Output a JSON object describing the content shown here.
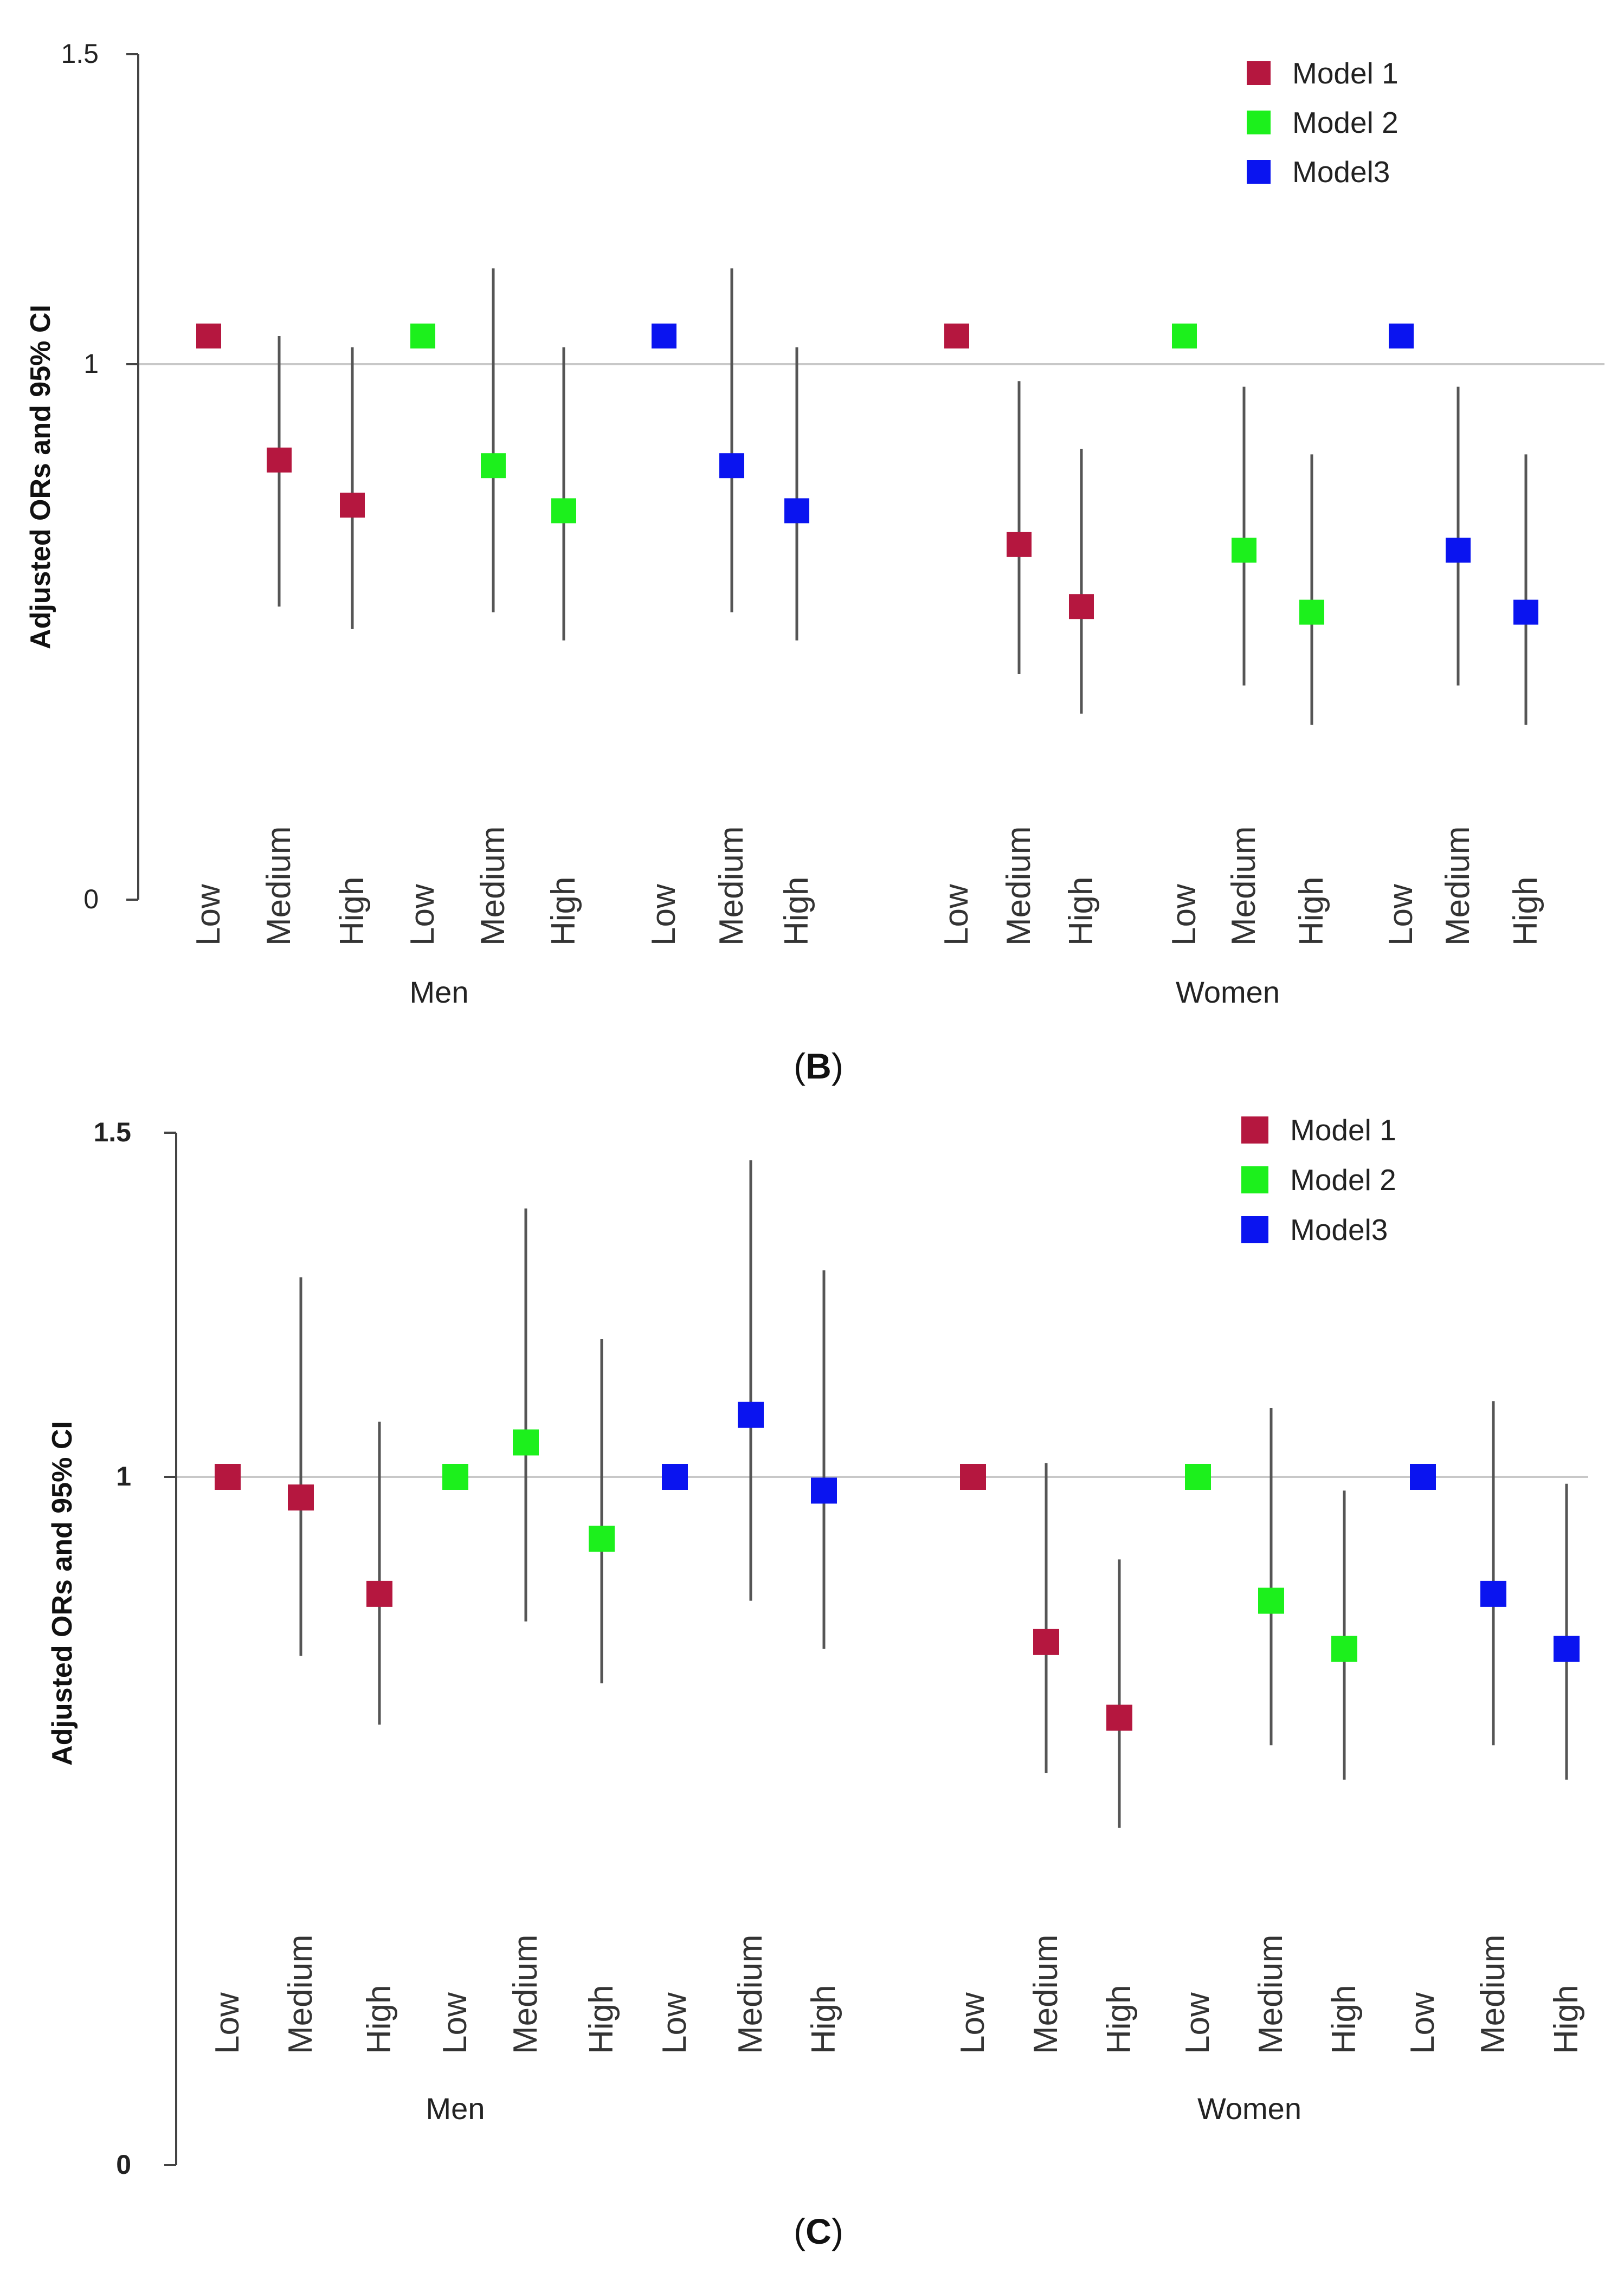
{
  "chart_data": [
    {
      "type": "scatter",
      "subtype": "forest-plot",
      "panel_label": "(B)",
      "ylabel": "Adjusted ORs and 95% CI",
      "ylim": [
        0,
        1.5
      ],
      "yticks": [
        {
          "value": 0,
          "label": "0"
        },
        {
          "value": 1,
          "label": "1"
        },
        {
          "value": 1.5,
          "label": "1.5"
        }
      ],
      "reference_line": 1,
      "legend": [
        {
          "name": "Model 1",
          "color": "#b5173f"
        },
        {
          "name": "Model 2",
          "color": "#1cf01c"
        },
        {
          "name": "Model3",
          "color": "#0a14f0"
        }
      ],
      "groups": [
        {
          "name": "Men",
          "models": [
            {
              "model": "Model 1",
              "points": [
                {
                  "category": "Low",
                  "or": 1.0,
                  "ci": null
                },
                {
                  "category": "Medium",
                  "or": 0.78,
                  "ci": [
                    0.52,
                    1.0
                  ]
                },
                {
                  "category": "High",
                  "or": 0.7,
                  "ci": [
                    0.48,
                    0.98
                  ]
                }
              ]
            },
            {
              "model": "Model 2",
              "points": [
                {
                  "category": "Low",
                  "or": 1.0,
                  "ci": null
                },
                {
                  "category": "Medium",
                  "or": 0.77,
                  "ci": [
                    0.51,
                    1.12
                  ]
                },
                {
                  "category": "High",
                  "or": 0.69,
                  "ci": [
                    0.46,
                    0.98
                  ]
                }
              ]
            },
            {
              "model": "Model3",
              "points": [
                {
                  "category": "Low",
                  "or": 1.0,
                  "ci": null
                },
                {
                  "category": "Medium",
                  "or": 0.77,
                  "ci": [
                    0.51,
                    1.12
                  ]
                },
                {
                  "category": "High",
                  "or": 0.69,
                  "ci": [
                    0.46,
                    0.98
                  ]
                }
              ]
            }
          ]
        },
        {
          "name": "Women",
          "models": [
            {
              "model": "Model 1",
              "points": [
                {
                  "category": "Low",
                  "or": 1.0,
                  "ci": null
                },
                {
                  "category": "Medium",
                  "or": 0.63,
                  "ci": [
                    0.4,
                    0.92
                  ]
                },
                {
                  "category": "High",
                  "or": 0.52,
                  "ci": [
                    0.33,
                    0.8
                  ]
                }
              ]
            },
            {
              "model": "Model 2",
              "points": [
                {
                  "category": "Low",
                  "or": 1.0,
                  "ci": null
                },
                {
                  "category": "Medium",
                  "or": 0.62,
                  "ci": [
                    0.38,
                    0.91
                  ]
                },
                {
                  "category": "High",
                  "or": 0.51,
                  "ci": [
                    0.31,
                    0.79
                  ]
                }
              ]
            },
            {
              "model": "Model3",
              "points": [
                {
                  "category": "Low",
                  "or": 1.0,
                  "ci": null
                },
                {
                  "category": "Medium",
                  "or": 0.62,
                  "ci": [
                    0.38,
                    0.91
                  ]
                },
                {
                  "category": "High",
                  "or": 0.51,
                  "ci": [
                    0.31,
                    0.79
                  ]
                }
              ]
            }
          ]
        }
      ]
    },
    {
      "type": "scatter",
      "subtype": "forest-plot",
      "panel_label": "(C)",
      "ylabel": "Adjusted ORs and 95% CI",
      "ylim": [
        0,
        1.5
      ],
      "yticks": [
        {
          "value": 0,
          "label": "0"
        },
        {
          "value": 1,
          "label": "1"
        },
        {
          "value": 1.5,
          "label": "1.5"
        }
      ],
      "reference_line": 1,
      "legend": [
        {
          "name": "Model 1",
          "color": "#b5173f"
        },
        {
          "name": "Model 2",
          "color": "#1cf01c"
        },
        {
          "name": "Model3",
          "color": "#0a14f0"
        }
      ],
      "groups": [
        {
          "name": "Men",
          "models": [
            {
              "model": "Model 1",
              "points": [
                {
                  "category": "Low",
                  "or": 1.0,
                  "ci": null
                },
                {
                  "category": "Medium",
                  "or": 0.97,
                  "ci": [
                    0.74,
                    1.29
                  ]
                },
                {
                  "category": "High",
                  "or": 0.83,
                  "ci": [
                    0.64,
                    1.08
                  ]
                }
              ]
            },
            {
              "model": "Model 2",
              "points": [
                {
                  "category": "Low",
                  "or": 1.0,
                  "ci": null
                },
                {
                  "category": "Medium",
                  "or": 1.05,
                  "ci": [
                    0.79,
                    1.39
                  ]
                },
                {
                  "category": "High",
                  "or": 0.91,
                  "ci": [
                    0.7,
                    1.2
                  ]
                }
              ]
            },
            {
              "model": "Model3",
              "points": [
                {
                  "category": "Low",
                  "or": 1.0,
                  "ci": null
                },
                {
                  "category": "Medium",
                  "or": 1.09,
                  "ci": [
                    0.82,
                    1.46
                  ]
                },
                {
                  "category": "High",
                  "or": 0.98,
                  "ci": [
                    0.75,
                    1.3
                  ]
                }
              ]
            }
          ]
        },
        {
          "name": "Women",
          "models": [
            {
              "model": "Model 1",
              "points": [
                {
                  "category": "Low",
                  "or": 1.0,
                  "ci": null
                },
                {
                  "category": "Medium",
                  "or": 0.76,
                  "ci": [
                    0.57,
                    1.02
                  ]
                },
                {
                  "category": "High",
                  "or": 0.65,
                  "ci": [
                    0.49,
                    0.88
                  ]
                }
              ]
            },
            {
              "model": "Model 2",
              "points": [
                {
                  "category": "Low",
                  "or": 1.0,
                  "ci": null
                },
                {
                  "category": "Medium",
                  "or": 0.82,
                  "ci": [
                    0.61,
                    1.1
                  ]
                },
                {
                  "category": "High",
                  "or": 0.75,
                  "ci": [
                    0.56,
                    0.98
                  ]
                }
              ]
            },
            {
              "model": "Model3",
              "points": [
                {
                  "category": "Low",
                  "or": 1.0,
                  "ci": null
                },
                {
                  "category": "Medium",
                  "or": 0.83,
                  "ci": [
                    0.61,
                    1.11
                  ]
                },
                {
                  "category": "High",
                  "or": 0.75,
                  "ci": [
                    0.56,
                    0.99
                  ]
                }
              ]
            }
          ]
        }
      ]
    }
  ]
}
